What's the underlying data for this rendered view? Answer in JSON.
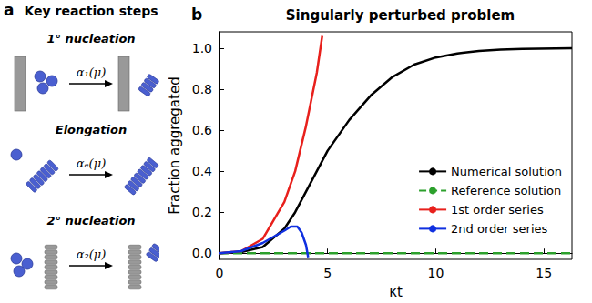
{
  "diagram": {
    "panel_label": "a",
    "title": "Key reaction steps",
    "steps": [
      {
        "label": "1° nucleation",
        "rate": "α₁(μ)"
      },
      {
        "label": "Elongation",
        "rate": "αₑ(μ)"
      },
      {
        "label": "2° nucleation",
        "rate": "α₂(μ)"
      }
    ]
  },
  "chart_data": {
    "panel_label": "b",
    "type": "line",
    "title": "Singularly perturbed problem",
    "x_label": "κt",
    "y_label": "Fraction aggregated",
    "xlim": [
      0,
      16.3
    ],
    "xticks": [
      0,
      5,
      10,
      15
    ],
    "ylim": [
      -0.03,
      1.08
    ],
    "yticks": [
      {
        "value": 0,
        "label": "0.0"
      },
      {
        "value": 0.2,
        "label": "0.2"
      },
      {
        "value": 0.4,
        "label": "0.4"
      },
      {
        "value": 0.6,
        "label": "0.6"
      },
      {
        "value": 0.8,
        "label": "0.8"
      },
      {
        "value": 1,
        "label": "1.0"
      }
    ],
    "grid": false,
    "legend": "lower right",
    "series": [
      {
        "name": "Numerical solution",
        "color": "#000000",
        "line_style": "solid",
        "x": [
          0,
          1,
          2,
          3,
          3.5,
          4,
          4.5,
          5,
          6,
          7,
          8,
          9,
          10,
          11,
          12,
          13,
          14,
          16.3
        ],
        "values": [
          0,
          0.005,
          0.03,
          0.12,
          0.2,
          0.3,
          0.4,
          0.5,
          0.65,
          0.77,
          0.86,
          0.92,
          0.955,
          0.975,
          0.987,
          0.993,
          0.997,
          1.0
        ]
      },
      {
        "name": "Reference solution",
        "color": "#2ca02c",
        "line_style": "dashed",
        "x": [
          0,
          16.3
        ],
        "values": [
          0,
          0
        ]
      },
      {
        "name": "1st order series",
        "color": "#e8201c",
        "line_style": "solid",
        "x": [
          0,
          1,
          2,
          3,
          3.5,
          4,
          4.5,
          4.75
        ],
        "values": [
          0,
          0.01,
          0.07,
          0.25,
          0.4,
          0.62,
          0.88,
          1.06
        ]
      },
      {
        "name": "2nd order series",
        "color": "#1030e0",
        "line_style": "solid",
        "x": [
          0,
          1,
          2,
          2.5,
          3,
          3.3,
          3.6,
          3.8,
          4,
          4.1
        ],
        "values": [
          0,
          0.01,
          0.05,
          0.08,
          0.11,
          0.13,
          0.13,
          0.1,
          0.04,
          -0.02
        ]
      }
    ]
  }
}
